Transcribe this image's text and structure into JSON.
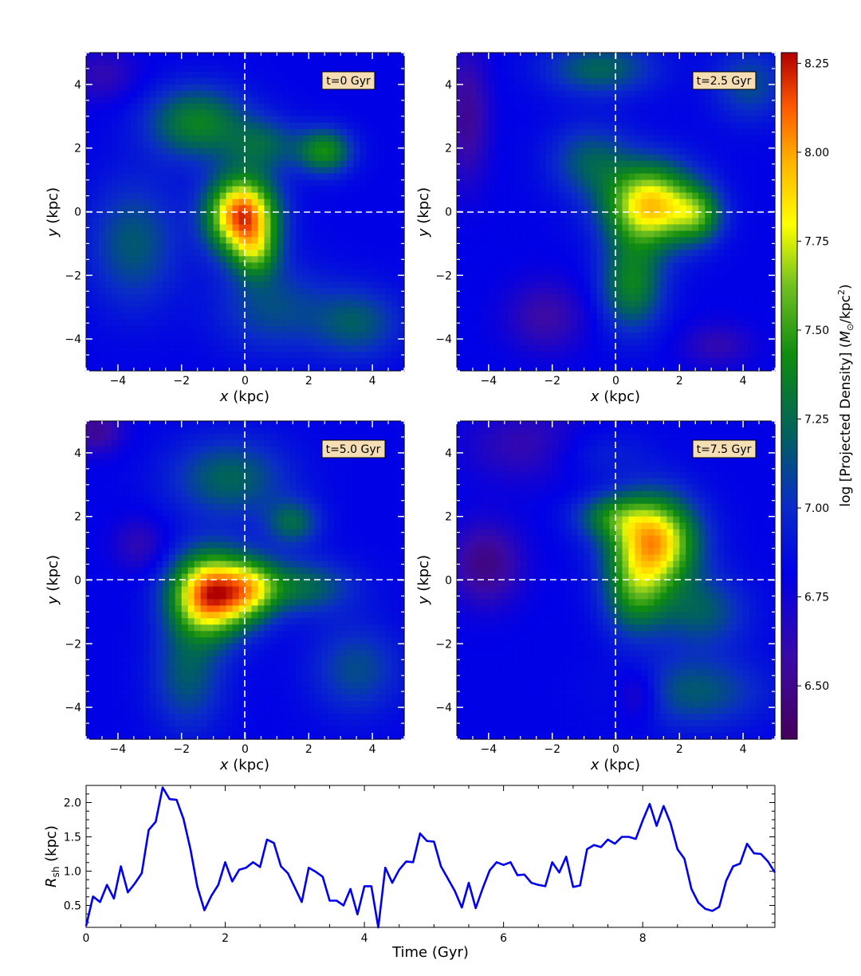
{
  "chart_data": [
    {
      "type": "heatmap",
      "panel": "t0",
      "label": "t=0 Gyr",
      "xlabel": "x (kpc)",
      "ylabel": "y (kpc)",
      "xlim": [
        -5,
        5
      ],
      "ylim": [
        -5,
        5
      ],
      "xticks": [
        -4,
        -2,
        0,
        2,
        4
      ],
      "yticks": [
        -4,
        -2,
        0,
        2,
        4
      ],
      "xticklabels": [
        "−4",
        "−2",
        "0",
        "2",
        "4"
      ],
      "yticklabels": [
        "−4",
        "−2",
        "0",
        "2",
        "4"
      ],
      "peak": {
        "x": -0.1,
        "y": -0.1,
        "logdensity": 8.2
      },
      "blobs": [
        {
          "x": -0.1,
          "y": -0.1,
          "sx": 0.75,
          "sy": 0.85,
          "amp": 1.35
        },
        {
          "x": 0.35,
          "y": -1.3,
          "sx": 0.5,
          "sy": 0.6,
          "amp": 0.45
        },
        {
          "x": -1.5,
          "y": 2.8,
          "sx": 1.1,
          "sy": 0.8,
          "amp": 0.55
        },
        {
          "x": 2.5,
          "y": 1.9,
          "sx": 0.6,
          "sy": 0.5,
          "amp": 0.6
        },
        {
          "x": 0.6,
          "y": 2.1,
          "sx": 0.8,
          "sy": 0.6,
          "amp": 0.35
        },
        {
          "x": 0.8,
          "y": -3.0,
          "sx": 1.2,
          "sy": 1.0,
          "amp": 0.3
        },
        {
          "x": -3.5,
          "y": -1.0,
          "sx": 1.0,
          "sy": 1.4,
          "amp": 0.35
        },
        {
          "x": 3.5,
          "y": -3.5,
          "sx": 1.0,
          "sy": 0.8,
          "amp": 0.35
        },
        {
          "x": -4.5,
          "y": 4.3,
          "sx": 0.8,
          "sy": 0.6,
          "amp": -0.2
        }
      ],
      "crosshair": {
        "x": 0,
        "y": 0
      }
    },
    {
      "type": "heatmap",
      "panel": "t25",
      "label": "t=2.5 Gyr",
      "xlabel": "x (kpc)",
      "ylabel": "y (kpc)",
      "xlim": [
        -5,
        5
      ],
      "ylim": [
        -5,
        5
      ],
      "xticks": [
        -4,
        -2,
        0,
        2,
        4
      ],
      "yticks": [
        -4,
        -2,
        0,
        2,
        4
      ],
      "xticklabels": [
        "−4",
        "−2",
        "0",
        "2",
        "4"
      ],
      "yticklabels": [
        "−4",
        "−2",
        "0",
        "2",
        "4"
      ],
      "peak": {
        "x": 1.2,
        "y": 0.1,
        "logdensity": 8.05
      },
      "blobs": [
        {
          "x": 1.1,
          "y": 0.2,
          "sx": 1.0,
          "sy": 0.9,
          "amp": 1.1
        },
        {
          "x": 2.6,
          "y": -0.1,
          "sx": 0.55,
          "sy": 0.6,
          "amp": 0.5
        },
        {
          "x": 0.5,
          "y": -2.3,
          "sx": 0.7,
          "sy": 1.0,
          "amp": 0.55
        },
        {
          "x": -0.8,
          "y": 1.6,
          "sx": 0.9,
          "sy": 0.8,
          "amp": 0.35
        },
        {
          "x": -0.5,
          "y": 4.5,
          "sx": 1.2,
          "sy": 0.6,
          "amp": 0.4
        },
        {
          "x": 4.2,
          "y": 4.0,
          "sx": 0.8,
          "sy": 0.8,
          "amp": 0.3
        },
        {
          "x": -4.7,
          "y": 3.0,
          "sx": 0.5,
          "sy": 1.5,
          "amp": -0.3
        },
        {
          "x": -2.2,
          "y": -3.3,
          "sx": 0.9,
          "sy": 0.8,
          "amp": -0.25
        },
        {
          "x": 3.2,
          "y": -4.2,
          "sx": 0.8,
          "sy": 0.5,
          "amp": -0.2
        }
      ],
      "crosshair": {
        "x": 0,
        "y": 0
      }
    },
    {
      "type": "heatmap",
      "panel": "t50",
      "label": "t=5.0 Gyr",
      "xlabel": "x (kpc)",
      "ylabel": "y (kpc)",
      "xlim": [
        -5,
        5
      ],
      "ylim": [
        -5,
        5
      ],
      "xticks": [
        -4,
        -2,
        0,
        2,
        4
      ],
      "yticks": [
        -4,
        -2,
        0,
        2,
        4
      ],
      "xticklabels": [
        "−4",
        "−2",
        "0",
        "2",
        "4"
      ],
      "yticklabels": [
        "−4",
        "−2",
        "0",
        "2",
        "4"
      ],
      "peak": {
        "x": -1.1,
        "y": -0.45,
        "logdensity": 8.25
      },
      "blobs": [
        {
          "x": -1.1,
          "y": -0.45,
          "sx": 0.85,
          "sy": 0.9,
          "amp": 1.35
        },
        {
          "x": 0.2,
          "y": -0.3,
          "sx": 0.6,
          "sy": 0.7,
          "amp": 0.55
        },
        {
          "x": 1.6,
          "y": -0.2,
          "sx": 1.2,
          "sy": 0.6,
          "amp": 0.45
        },
        {
          "x": 1.5,
          "y": 1.8,
          "sx": 0.6,
          "sy": 0.5,
          "amp": 0.4
        },
        {
          "x": -0.5,
          "y": 3.2,
          "sx": 1.3,
          "sy": 0.9,
          "amp": 0.4
        },
        {
          "x": -1.8,
          "y": -3.0,
          "sx": 0.8,
          "sy": 1.2,
          "amp": 0.35
        },
        {
          "x": 3.5,
          "y": -2.8,
          "sx": 1.0,
          "sy": 1.0,
          "amp": 0.3
        },
        {
          "x": -3.3,
          "y": 1.1,
          "sx": 0.6,
          "sy": 0.6,
          "amp": -0.2
        },
        {
          "x": -4.7,
          "y": 4.7,
          "sx": 0.6,
          "sy": 0.5,
          "amp": -0.3
        }
      ],
      "crosshair": {
        "x": 0,
        "y": 0
      }
    },
    {
      "type": "heatmap",
      "panel": "t75",
      "label": "t=7.5 Gyr",
      "xlabel": "x (kpc)",
      "ylabel": "y (kpc)",
      "xlim": [
        -5,
        5
      ],
      "ylim": [
        -5,
        5
      ],
      "xticks": [
        -4,
        -2,
        0,
        2,
        4
      ],
      "yticks": [
        -4,
        -2,
        0,
        2,
        4
      ],
      "xticklabels": [
        "−4",
        "−2",
        "0",
        "2",
        "4"
      ],
      "yticklabels": [
        "−4",
        "−2",
        "0",
        "2",
        "4"
      ],
      "peak": {
        "x": 1.2,
        "y": 1.2,
        "logdensity": 8.05
      },
      "blobs": [
        {
          "x": 1.2,
          "y": 1.2,
          "sx": 0.95,
          "sy": 1.0,
          "amp": 1.15
        },
        {
          "x": 0.6,
          "y": -0.5,
          "sx": 0.7,
          "sy": 0.9,
          "amp": 0.5
        },
        {
          "x": -0.2,
          "y": 2.0,
          "sx": 0.8,
          "sy": 0.5,
          "amp": 0.4
        },
        {
          "x": 2.7,
          "y": -1.0,
          "sx": 1.0,
          "sy": 0.8,
          "amp": 0.35
        },
        {
          "x": 2.5,
          "y": -3.5,
          "sx": 1.5,
          "sy": 0.8,
          "amp": 0.35
        },
        {
          "x": -0.8,
          "y": 4.0,
          "sx": 1.2,
          "sy": 0.6,
          "amp": 0.2
        },
        {
          "x": -4.1,
          "y": 0.5,
          "sx": 0.8,
          "sy": 0.9,
          "amp": -0.35
        },
        {
          "x": -2.5,
          "y": 4.2,
          "sx": 1.5,
          "sy": 0.8,
          "amp": -0.25
        },
        {
          "x": 0.7,
          "y": -3.6,
          "sx": 0.5,
          "sy": 0.6,
          "amp": -0.25
        }
      ],
      "crosshair": {
        "x": 0,
        "y": 0
      }
    },
    {
      "type": "line",
      "panel": "rsh",
      "xlabel": "Time (Gyr)",
      "ylabel_main": "R",
      "ylabel_sub": "sh",
      "ylabel_rest": " (kpc)",
      "xlim": [
        0,
        9.9
      ],
      "ylim": [
        0.18,
        2.25
      ],
      "xticks": [
        0,
        2,
        4,
        6,
        8
      ],
      "xticklabels": [
        "0",
        "2",
        "4",
        "6",
        "8"
      ],
      "yticks": [
        0.5,
        1.0,
        1.5,
        2.0
      ],
      "yticklabels": [
        "0.5",
        "1.0",
        "1.5",
        "2.0"
      ],
      "color": "#0000ee",
      "x": [
        0.0,
        0.1,
        0.2,
        0.3,
        0.4,
        0.5,
        0.6,
        0.7,
        0.8,
        0.9,
        1.0,
        1.1,
        1.2,
        1.3,
        1.4,
        1.5,
        1.6,
        1.7,
        1.8,
        1.9,
        2.0,
        2.1,
        2.2,
        2.3,
        2.4,
        2.5,
        2.6,
        2.7,
        2.8,
        2.9,
        3.0,
        3.1,
        3.2,
        3.3,
        3.4,
        3.5,
        3.6,
        3.7,
        3.8,
        3.9,
        4.0,
        4.1,
        4.2,
        4.3,
        4.4,
        4.5,
        4.6,
        4.7,
        4.8,
        4.9,
        5.0,
        5.1,
        5.2,
        5.3,
        5.4,
        5.5,
        5.6,
        5.7,
        5.8,
        5.9,
        6.0,
        6.1,
        6.2,
        6.3,
        6.4,
        6.5,
        6.6,
        6.7,
        6.8,
        6.9,
        7.0,
        7.1,
        7.2,
        7.3,
        7.4,
        7.5,
        7.6,
        7.7,
        7.8,
        7.9,
        8.0,
        8.1,
        8.2,
        8.3,
        8.4,
        8.5,
        8.6,
        8.7,
        8.8,
        8.9,
        9.0,
        9.1,
        9.2,
        9.3,
        9.4,
        9.5,
        9.6,
        9.7,
        9.8,
        9.9
      ],
      "y": [
        0.2,
        0.63,
        0.55,
        0.8,
        0.6,
        1.07,
        0.69,
        0.82,
        0.97,
        1.6,
        1.72,
        2.22,
        2.05,
        2.04,
        1.76,
        1.32,
        0.77,
        0.43,
        0.64,
        0.8,
        1.13,
        0.85,
        1.02,
        1.05,
        1.13,
        1.06,
        1.46,
        1.41,
        1.07,
        0.97,
        0.76,
        0.55,
        1.05,
        0.99,
        0.92,
        0.57,
        0.57,
        0.5,
        0.74,
        0.37,
        0.78,
        0.78,
        0.17,
        1.05,
        0.83,
        1.02,
        1.14,
        1.13,
        1.55,
        1.44,
        1.43,
        1.07,
        0.89,
        0.71,
        0.47,
        0.83,
        0.46,
        0.75,
        1.01,
        1.13,
        1.09,
        1.13,
        0.94,
        0.95,
        0.83,
        0.8,
        0.78,
        1.13,
        0.98,
        1.21,
        0.77,
        0.79,
        1.32,
        1.38,
        1.35,
        1.46,
        1.4,
        1.5,
        1.5,
        1.47,
        1.74,
        1.98,
        1.66,
        1.95,
        1.7,
        1.32,
        1.18,
        0.74,
        0.54,
        0.45,
        0.42,
        0.48,
        0.86,
        1.07,
        1.11,
        1.4,
        1.26,
        1.25,
        1.14,
        0.98
      ]
    }
  ],
  "colorbar": {
    "label": "log [Projected Density] (M⊙/kpc²)",
    "label_parts": [
      "log [Projected Density] (",
      "M",
      "⊙",
      "/kpc",
      "2",
      ")"
    ],
    "vmin": 6.35,
    "vmax": 8.28,
    "ticks": [
      6.5,
      6.75,
      7.0,
      7.25,
      7.5,
      7.75,
      8.0,
      8.25
    ],
    "ticklabels": [
      "6.50",
      "6.75",
      "7.00",
      "7.25",
      "7.50",
      "7.75",
      "8.00",
      "8.25"
    ],
    "colormap": [
      [
        0.0,
        "#46005a"
      ],
      [
        0.12,
        "#3a0aa8"
      ],
      [
        0.24,
        "#0000e6"
      ],
      [
        0.34,
        "#0a2cc8"
      ],
      [
        0.44,
        "#006060"
      ],
      [
        0.56,
        "#108c10"
      ],
      [
        0.66,
        "#70c020"
      ],
      [
        0.75,
        "#ffff00"
      ],
      [
        0.84,
        "#ffb400"
      ],
      [
        0.92,
        "#ff5a00"
      ],
      [
        1.0,
        "#b00000"
      ]
    ],
    "background_level": 6.82
  }
}
